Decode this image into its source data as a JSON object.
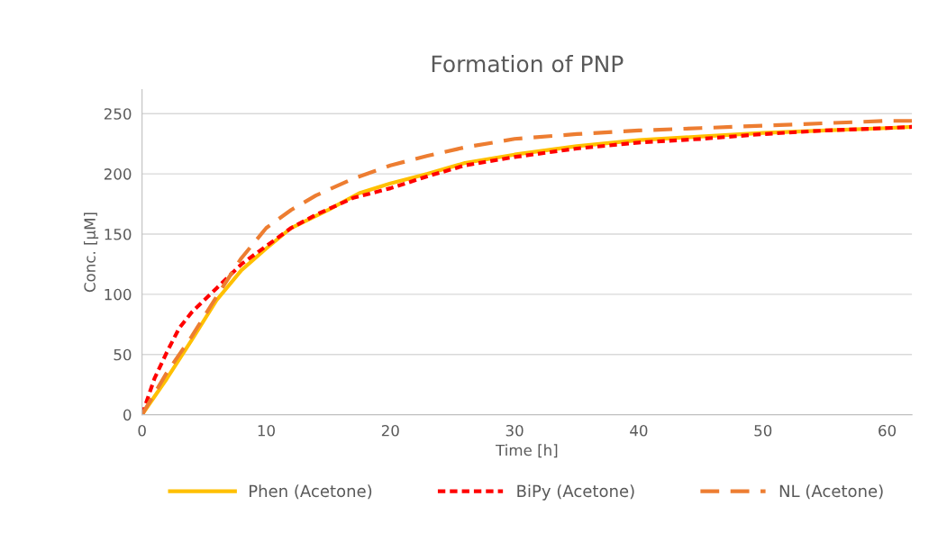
{
  "chart_data": {
    "type": "line",
    "title": "Formation of PNP",
    "xlabel": "Time [h]",
    "ylabel": "Conc. [µM]",
    "xlim": [
      0,
      62
    ],
    "xticks": [
      0,
      10,
      20,
      30,
      40,
      50,
      60
    ],
    "ylim": [
      0,
      270
    ],
    "yticks": [
      0,
      50,
      100,
      150,
      200,
      250
    ],
    "grid": "y",
    "legend": "bottom",
    "series": [
      {
        "name": "Phen (Acetone)",
        "color": "#ffc000",
        "line_style": "solid",
        "x": [
          0,
          2,
          4,
          6,
          8,
          10,
          12,
          15,
          17.5,
          20,
          23,
          26,
          30,
          35,
          40,
          45,
          50,
          55,
          60,
          62
        ],
        "values": [
          0,
          30,
          62,
          95,
          120,
          138,
          155,
          170,
          184,
          192,
          200,
          209,
          216,
          223,
          228,
          231,
          234,
          236,
          238,
          239
        ]
      },
      {
        "name": "BiPy (Acetone)",
        "color": "#ff0000",
        "line_style": "dotted",
        "x": [
          0,
          1,
          2,
          3,
          4,
          6,
          8,
          10,
          12,
          14,
          17,
          20,
          23,
          26,
          30,
          35,
          40,
          45,
          50,
          55,
          60,
          62
        ],
        "values": [
          0,
          30,
          52,
          72,
          85,
          105,
          125,
          140,
          155,
          166,
          180,
          188,
          198,
          207,
          214,
          221,
          226,
          229,
          233,
          236,
          238,
          239
        ]
      },
      {
        "name": "NL (Acetone)",
        "color": "#ed7d31",
        "line_style": "dashed",
        "x": [
          0,
          2,
          4,
          6,
          8,
          10,
          12,
          14,
          17,
          20,
          23,
          26,
          30,
          35,
          40,
          45,
          50,
          55,
          60,
          62
        ],
        "values": [
          0,
          35,
          65,
          98,
          130,
          155,
          170,
          182,
          196,
          207,
          215,
          222,
          229,
          233,
          236,
          238,
          240,
          242,
          244,
          244
        ]
      }
    ]
  }
}
